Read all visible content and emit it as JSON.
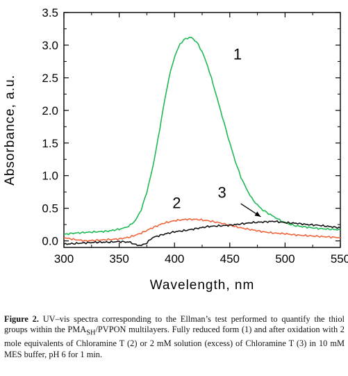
{
  "chart_data": {
    "type": "line",
    "title": "",
    "xlabel": "Wavelength, nm",
    "ylabel": "Absorbance, a.u.",
    "xlim": [
      300,
      550
    ],
    "ylim": [
      -0.1,
      3.5
    ],
    "xticks": [
      "300",
      "350",
      "400",
      "450",
      "500",
      "550"
    ],
    "yticks": [
      "0.0",
      "0.5",
      "1.0",
      "1.5",
      "2.0",
      "2.5",
      "3.0",
      "3.5"
    ],
    "grid": false,
    "legend": "none",
    "series": [
      {
        "name": "1",
        "color": "#1db954",
        "x": [
          300,
          310,
          320,
          330,
          340,
          350,
          355,
          360,
          365,
          370,
          375,
          380,
          385,
          390,
          395,
          400,
          405,
          410,
          415,
          420,
          425,
          430,
          435,
          440,
          445,
          450,
          455,
          460,
          465,
          470,
          475,
          480,
          485,
          490,
          495,
          500,
          505,
          510,
          520,
          530,
          540,
          550
        ],
        "y": [
          0.1,
          0.12,
          0.13,
          0.14,
          0.15,
          0.18,
          0.2,
          0.24,
          0.32,
          0.48,
          0.75,
          1.1,
          1.55,
          2.05,
          2.5,
          2.82,
          3.02,
          3.1,
          3.12,
          3.05,
          2.9,
          2.68,
          2.4,
          2.1,
          1.8,
          1.5,
          1.22,
          0.98,
          0.8,
          0.65,
          0.55,
          0.47,
          0.42,
          0.37,
          0.32,
          0.28,
          0.25,
          0.23,
          0.21,
          0.19,
          0.18,
          0.17
        ]
      },
      {
        "name": "2",
        "color": "#f0643c",
        "x": [
          300,
          310,
          320,
          330,
          340,
          350,
          360,
          370,
          380,
          390,
          400,
          410,
          420,
          430,
          440,
          450,
          460,
          470,
          480,
          490,
          500,
          510,
          520,
          530,
          540,
          550
        ],
        "y": [
          0.05,
          0.02,
          0.0,
          0.01,
          0.02,
          0.03,
          0.06,
          0.12,
          0.2,
          0.27,
          0.31,
          0.33,
          0.33,
          0.31,
          0.28,
          0.24,
          0.2,
          0.17,
          0.14,
          0.12,
          0.11,
          0.09,
          0.08,
          0.07,
          0.06,
          0.05
        ]
      },
      {
        "name": "3",
        "color": "#111111",
        "x": [
          300,
          310,
          320,
          330,
          340,
          350,
          360,
          365,
          370,
          375,
          380,
          390,
          400,
          410,
          420,
          430,
          440,
          450,
          460,
          470,
          480,
          490,
          500,
          510,
          520,
          530,
          540,
          550
        ],
        "y": [
          -0.05,
          -0.04,
          -0.03,
          -0.02,
          -0.02,
          -0.01,
          -0.02,
          -0.06,
          -0.07,
          -0.03,
          0.05,
          0.1,
          0.14,
          0.16,
          0.19,
          0.22,
          0.23,
          0.24,
          0.26,
          0.28,
          0.29,
          0.3,
          0.28,
          0.27,
          0.25,
          0.24,
          0.22,
          0.2
        ]
      }
    ],
    "annotations": [
      {
        "text": "1",
        "x": 457,
        "y": 2.78
      },
      {
        "text": "2",
        "x": 402,
        "y": 0.5
      },
      {
        "text": "3",
        "x": 443,
        "y": 0.66
      }
    ],
    "arrow": {
      "from": [
        460,
        0.57
      ],
      "to": [
        478,
        0.37
      ]
    }
  },
  "caption": {
    "bold": "Figure 2.",
    "text": " UV–vis spectra corresponding to the Ellman’s test performed to quantify the thiol groups within the PMA",
    "sub": "SH",
    "text2": "/PVPON multilayers. Fully reduced form (1) and after oxidation with 2 mole equivalents of Chloramine T (2) or 2 mM solution (excess) of Chloramine T (3) in 10 mM MES buffer, pH 6 for 1 min."
  }
}
